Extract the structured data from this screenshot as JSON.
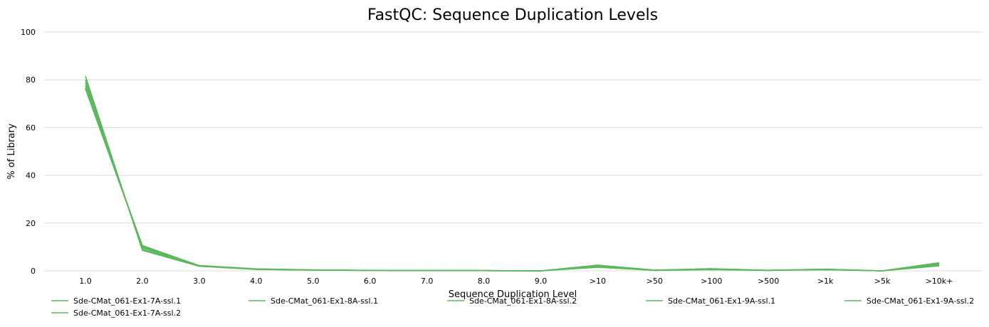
{
  "chart_data": {
    "type": "line",
    "title": "FastQC: Sequence Duplication Levels",
    "xlabel": "Sequence Duplication Level",
    "ylabel": "% of Library",
    "ylim": [
      0,
      100
    ],
    "yticks": [
      0,
      20,
      40,
      60,
      80,
      100
    ],
    "grid": true,
    "legend_position": "bottom",
    "line_color": "#5cb85c",
    "categories": [
      "1.0",
      "2.0",
      "3.0",
      "4.0",
      "5.0",
      "6.0",
      "7.0",
      "8.0",
      "9.0",
      ">10",
      ">50",
      ">100",
      ">500",
      ">1k",
      ">5k",
      ">10k+"
    ],
    "series": [
      {
        "name": "Sde-CMat_061-Ex1-7A-ssl.1",
        "values": [
          81.5,
          8.6,
          1.9,
          0.6,
          0.3,
          0.2,
          0.1,
          0.1,
          0.0,
          1.5,
          0.2,
          0.5,
          0.2,
          0.5,
          0.0,
          2.1
        ]
      },
      {
        "name": "Sde-CMat_061-Ex1-8A-ssl.1",
        "values": [
          78.8,
          9.6,
          2.1,
          0.7,
          0.3,
          0.2,
          0.2,
          0.1,
          0.0,
          1.9,
          0.2,
          0.7,
          0.2,
          0.6,
          0.0,
          2.8
        ]
      },
      {
        "name": "Sde-CMat_061-Ex1-8A-ssl.2",
        "values": [
          77.5,
          10.1,
          2.1,
          0.7,
          0.3,
          0.2,
          0.2,
          0.1,
          0.0,
          2.1,
          0.3,
          0.8,
          0.2,
          0.6,
          0.0,
          3.0
        ]
      },
      {
        "name": "Sde-CMat_061-Ex1-9A-ssl.1",
        "values": [
          76.5,
          10.6,
          2.2,
          0.8,
          0.4,
          0.2,
          0.2,
          0.1,
          0.0,
          2.4,
          0.3,
          0.9,
          0.2,
          0.7,
          0.0,
          3.4
        ]
      },
      {
        "name": "Sde-CMat_061-Ex1-9A-ssl.2",
        "values": [
          76.2,
          10.2,
          2.2,
          0.8,
          0.4,
          0.2,
          0.2,
          0.1,
          0.0,
          2.3,
          0.3,
          0.8,
          0.2,
          0.7,
          0.0,
          3.2
        ]
      },
      {
        "name": "Sde-CMat_061-Ex1-7A-ssl.2",
        "values": [
          80.0,
          9.0,
          2.0,
          0.6,
          0.3,
          0.2,
          0.1,
          0.1,
          0.0,
          1.7,
          0.2,
          0.6,
          0.2,
          0.5,
          0.0,
          2.5
        ]
      }
    ]
  }
}
